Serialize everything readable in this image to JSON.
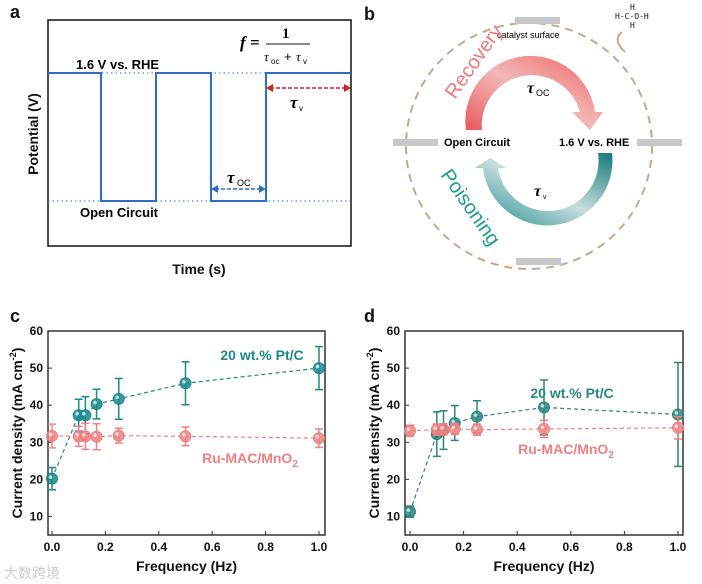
{
  "panel_a": {
    "label": "a",
    "high_label": "1.6 V vs. RHE",
    "low_label": "Open Circuit",
    "formula_f": "f =",
    "formula_num": "1",
    "formula_den_a": "τ",
    "formula_den_a_sub": "oc",
    "formula_plus": "+",
    "formula_den_b": "τ",
    "formula_den_b_sub": "v",
    "tau_oc": "τ",
    "tau_oc_sub": "OC",
    "tau_v": "τ",
    "tau_v_sub": "v",
    "ylabel": "Potential (V)",
    "xlabel": "Time (s)"
  },
  "panel_b": {
    "label": "b",
    "catalyst_surface": "catalyst surface",
    "recovery": "Recovery",
    "poisoning": "Poisoning",
    "open_circuit": "Open Circuit",
    "potential": "1.6 V vs. RHE",
    "tau_oc": "τ",
    "tau_oc_sub": "OC",
    "tau_v": "τ",
    "tau_v_sub": "v",
    "methanol": [
      "H",
      "H-C-O-H",
      "H"
    ]
  },
  "watermark": "大数跨境",
  "colors": {
    "teal": "#1a8a8c",
    "pink": "#f08080",
    "tan": "#c9a888",
    "blue": "#2a6fc4",
    "red": "#d42020"
  },
  "chart_data": [
    {
      "panel": "c",
      "type": "scatter",
      "xlabel": "Frequency (Hz)",
      "ylabel": "Current density (mA cm",
      "ylabel_sup": "-2",
      "ylabel_end": ")",
      "xlim": [
        -0.02,
        1.02
      ],
      "ylim": [
        5,
        60
      ],
      "xticks": [
        "0.0",
        "0.2",
        "0.4",
        "0.6",
        "0.8",
        "1.0"
      ],
      "yticks": [
        "10",
        "20",
        "30",
        "40",
        "50",
        "60"
      ],
      "series": [
        {
          "name": "20 wt.% Pt/C",
          "color": "#1a8a8c",
          "x": [
            0,
            0.1,
            0.125,
            0.167,
            0.25,
            0.5,
            1.0
          ],
          "y": [
            20.2,
            37.3,
            37.3,
            40.3,
            41.7,
            45.9,
            50.0
          ],
          "err": [
            3.0,
            4.3,
            5.0,
            4.0,
            5.5,
            5.8,
            5.8
          ]
        },
        {
          "name": "Ru-MAC/MnO",
          "name_sub": "2",
          "color": "#f08080",
          "x": [
            0,
            0.1,
            0.125,
            0.167,
            0.25,
            0.5,
            1.0
          ],
          "y": [
            31.7,
            31.6,
            31.6,
            31.5,
            31.8,
            31.6,
            31.1
          ],
          "err": [
            3.2,
            2.7,
            3.5,
            3.5,
            2.0,
            2.5,
            2.5
          ]
        }
      ]
    },
    {
      "panel": "d",
      "type": "scatter",
      "xlabel": "Frequency (Hz)",
      "ylabel": "Current density (mA cm",
      "ylabel_sup": "-2",
      "ylabel_end": ")",
      "xlim": [
        -0.02,
        1.02
      ],
      "ylim": [
        5,
        60
      ],
      "xticks": [
        "0.0",
        "0.2",
        "0.4",
        "0.6",
        "0.8",
        "1.0"
      ],
      "yticks": [
        "10",
        "20",
        "30",
        "40",
        "50",
        "60"
      ],
      "series": [
        {
          "name": "20 wt.% Pt/C",
          "color": "#2a8580",
          "x": [
            0,
            0.1,
            0.125,
            0.167,
            0.25,
            0.5,
            1.0
          ],
          "y": [
            11.3,
            32.2,
            33.3,
            35.2,
            36.9,
            39.4,
            37.5
          ],
          "err": [
            1.5,
            6.0,
            5.2,
            4.7,
            4.3,
            7.4,
            14.0
          ]
        },
        {
          "name": "Ru-MAC/MnO",
          "name_sub": "2",
          "color": "#f08080",
          "x": [
            0,
            0.1,
            0.125,
            0.167,
            0.25,
            0.5,
            1.0
          ],
          "y": [
            33.1,
            33.4,
            33.5,
            33.6,
            33.4,
            33.6,
            33.9
          ],
          "err": [
            1.5,
            1.5,
            1.5,
            1.5,
            1.5,
            2.3,
            3.0
          ]
        }
      ]
    }
  ]
}
